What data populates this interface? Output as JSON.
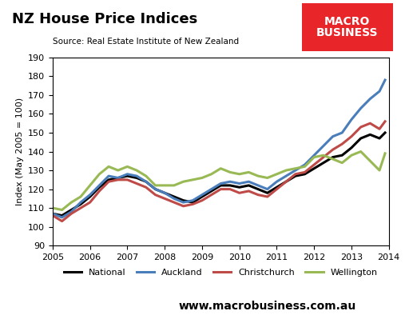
{
  "chart_data": {
    "type": "line",
    "title": "NZ House Price Indices",
    "subtitle": "Source: Real Estate Institute of New Zealand",
    "y_label": "Index (May 2005 = 100)",
    "logo_text": "MACRO\nBUSINESS",
    "footer": "www.macrobusiness.com.au",
    "x": [
      2005.0,
      2005.25,
      2005.5,
      2005.75,
      2006.0,
      2006.25,
      2006.5,
      2006.75,
      2007.0,
      2007.25,
      2007.5,
      2007.75,
      2008.0,
      2008.25,
      2008.5,
      2008.75,
      2009.0,
      2009.25,
      2009.5,
      2009.75,
      2010.0,
      2010.25,
      2010.5,
      2010.75,
      2011.0,
      2011.25,
      2011.5,
      2011.75,
      2012.0,
      2012.25,
      2012.5,
      2012.75,
      2013.0,
      2013.25,
      2013.5,
      2013.75,
      2013.9
    ],
    "series": [
      {
        "name": "National",
        "color": "#000000",
        "values": [
          107,
          106,
          109,
          112,
          116,
          121,
          125,
          126,
          127,
          126,
          124,
          120,
          118,
          116,
          114,
          113,
          116,
          119,
          122,
          122,
          121,
          122,
          120,
          118,
          121,
          124,
          127,
          128,
          131,
          134,
          137,
          138,
          142,
          147,
          149,
          147,
          150
        ]
      },
      {
        "name": "Auckland",
        "color": "#4a7ebb",
        "values": [
          107,
          105,
          108,
          113,
          117,
          122,
          127,
          126,
          128,
          127,
          124,
          120,
          118,
          115,
          113,
          114,
          117,
          120,
          123,
          124,
          123,
          124,
          122,
          120,
          124,
          127,
          130,
          133,
          138,
          143,
          148,
          150,
          157,
          163,
          168,
          172,
          178
        ]
      },
      {
        "name": "Christchurch",
        "color": "#be4b48",
        "values": [
          106,
          103,
          107,
          110,
          113,
          119,
          124,
          125,
          125,
          123,
          121,
          117,
          115,
          113,
          111,
          112,
          114,
          117,
          120,
          120,
          118,
          119,
          117,
          116,
          120,
          124,
          128,
          129,
          133,
          137,
          141,
          144,
          148,
          153,
          155,
          152,
          156
        ]
      },
      {
        "name": "Wellington",
        "color": "#98b954",
        "values": [
          110,
          109,
          113,
          116,
          122,
          128,
          132,
          130,
          132,
          130,
          127,
          122,
          122,
          122,
          124,
          125,
          126,
          128,
          131,
          129,
          128,
          129,
          127,
          126,
          128,
          130,
          131,
          132,
          137,
          138,
          136,
          134,
          138,
          140,
          135,
          130,
          139
        ]
      }
    ],
    "xlim": [
      2005,
      2014
    ],
    "xticks": [
      2005,
      2006,
      2007,
      2008,
      2009,
      2010,
      2011,
      2012,
      2013,
      2014
    ],
    "ylim": [
      90,
      190
    ],
    "yticks": [
      90,
      100,
      110,
      120,
      130,
      140,
      150,
      160,
      170,
      180,
      190
    ],
    "grid": false,
    "legend": "upper center"
  }
}
